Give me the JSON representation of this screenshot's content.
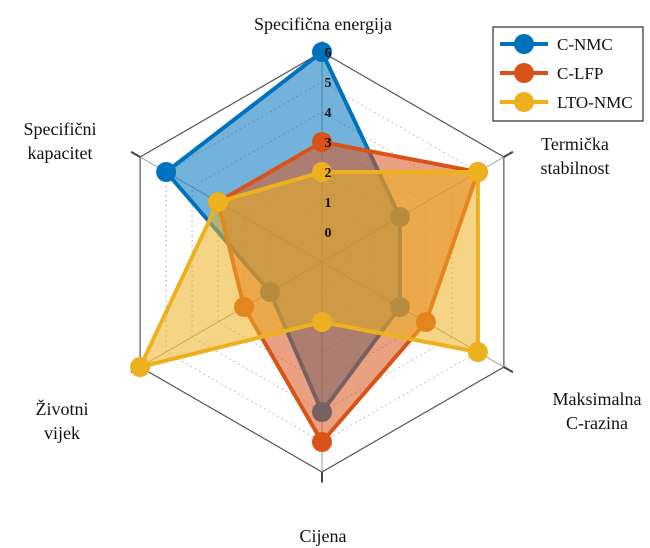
{
  "chart_data": {
    "type": "radar",
    "axes": [
      "Specifična energija",
      "Termička stabilnost",
      "Maksimalna C-razina",
      "Cijena",
      "Životni vijek",
      "Specifični kapacitet"
    ],
    "axis_label_lines": [
      [
        "Specifična energija"
      ],
      [
        "Termička",
        "stabilnost"
      ],
      [
        "Maksimalna",
        "C-razina"
      ],
      [
        "Cijena"
      ],
      [
        "Životni",
        "vijek"
      ],
      [
        "Specifični",
        "kapacitet"
      ]
    ],
    "ticks": [
      "0",
      "1",
      "2",
      "3",
      "4",
      "5",
      "6"
    ],
    "rlim": [
      -1,
      6
    ],
    "grid": true,
    "legend_position": "top-right",
    "series": [
      {
        "name": "C-NMC",
        "color": "#0072BD",
        "values": [
          6,
          2,
          2,
          4,
          1,
          5
        ]
      },
      {
        "name": "C-LFP",
        "color": "#D95319",
        "values": [
          3,
          5,
          3,
          5,
          2,
          3
        ]
      },
      {
        "name": "LTO-NMC",
        "color": "#EDB120",
        "values": [
          2,
          5,
          5,
          1,
          6,
          3
        ]
      }
    ]
  }
}
